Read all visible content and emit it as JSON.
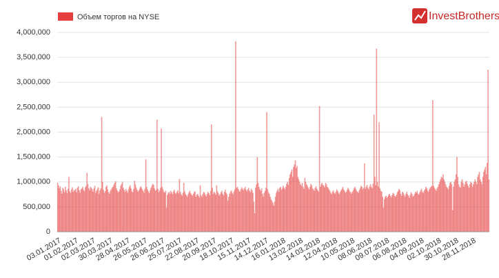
{
  "chart_data": {
    "type": "bar",
    "legend": "Объем торгов на NYSE",
    "logo": "InvestBrothers",
    "color": "#e53e3e",
    "grid": true,
    "ylim": [
      0,
      4000000
    ],
    "yticks": [
      0,
      {
        "value": 500000,
        "label": "500,000"
      },
      {
        "value": 1000000,
        "label": "1,000,000"
      },
      {
        "value": 1500000,
        "label": "1,500,000"
      },
      {
        "value": 2000000,
        "label": "2,000,000"
      },
      {
        "value": 2500000,
        "label": "2,500,000"
      },
      {
        "value": 3000000,
        "label": "3,000,000"
      },
      {
        "value": 3500000,
        "label": "3,500,000"
      },
      {
        "value": 4000000,
        "label": "4,000,000"
      }
    ],
    "categories": [
      "03.01.2017",
      null,
      null,
      null,
      null,
      null,
      null,
      null,
      null,
      null,
      null,
      null,
      null,
      null,
      null,
      null,
      null,
      null,
      null,
      null,
      "01.02.2017",
      null,
      null,
      null,
      null,
      null,
      null,
      null,
      null,
      null,
      null,
      null,
      null,
      null,
      null,
      null,
      null,
      null,
      null,
      null,
      "02.03.2017",
      null,
      null,
      null,
      null,
      null,
      null,
      null,
      null,
      null,
      null,
      null,
      null,
      null,
      null,
      null,
      null,
      null,
      null,
      null,
      "30.03.2017",
      null,
      null,
      null,
      null,
      null,
      null,
      null,
      null,
      null,
      null,
      null,
      null,
      null,
      null,
      null,
      null,
      null,
      null,
      null,
      "28.04.2017",
      null,
      null,
      null,
      null,
      null,
      null,
      null,
      null,
      null,
      null,
      null,
      null,
      null,
      null,
      null,
      null,
      null,
      null,
      null,
      "26.05.2017",
      null,
      null,
      null,
      null,
      null,
      null,
      null,
      null,
      null,
      null,
      null,
      null,
      null,
      null,
      null,
      null,
      null,
      null,
      null,
      "26.06.2017",
      null,
      null,
      null,
      null,
      null,
      null,
      null,
      null,
      null,
      null,
      null,
      null,
      null,
      null,
      null,
      null,
      null,
      null,
      null,
      "25.07.2017",
      null,
      null,
      null,
      null,
      null,
      null,
      null,
      null,
      null,
      null,
      null,
      null,
      null,
      null,
      null,
      null,
      null,
      null,
      null,
      "22.08.2017",
      null,
      null,
      null,
      null,
      null,
      null,
      null,
      null,
      null,
      null,
      null,
      null,
      null,
      null,
      null,
      null,
      null,
      null,
      null,
      "20.09.2017",
      null,
      null,
      null,
      null,
      null,
      null,
      null,
      null,
      null,
      null,
      null,
      null,
      null,
      null,
      null,
      null,
      null,
      null,
      null,
      "18.10.2017",
      null,
      null,
      null,
      null,
      null,
      null,
      null,
      null,
      null,
      null,
      null,
      null,
      null,
      null,
      null,
      null,
      null,
      null,
      null,
      "15.11.2017",
      null,
      null,
      null,
      null,
      null,
      null,
      null,
      null,
      null,
      null,
      null,
      null,
      null,
      null,
      null,
      null,
      null,
      null,
      null,
      "14.12.2017",
      null,
      null,
      null,
      null,
      null,
      null,
      null,
      null,
      null,
      null,
      null,
      null,
      null,
      null,
      null,
      null,
      null,
      null,
      null,
      "16.01.2018",
      null,
      null,
      null,
      null,
      null,
      null,
      null,
      null,
      null,
      null,
      null,
      null,
      null,
      null,
      null,
      null,
      null,
      null,
      null,
      "13.02.2018",
      null,
      null,
      null,
      null,
      null,
      null,
      null,
      null,
      null,
      null,
      null,
      null,
      null,
      null,
      null,
      null,
      null,
      null,
      null,
      "14.03.2018",
      null,
      null,
      null,
      null,
      null,
      null,
      null,
      null,
      null,
      null,
      null,
      null,
      null,
      null,
      null,
      null,
      null,
      null,
      null,
      "12.04.2018",
      null,
      null,
      null,
      null,
      null,
      null,
      null,
      null,
      null,
      null,
      null,
      null,
      null,
      null,
      null,
      null,
      null,
      null,
      null,
      "10.05.2018",
      null,
      null,
      null,
      null,
      null,
      null,
      null,
      null,
      null,
      null,
      null,
      null,
      null,
      null,
      null,
      null,
      null,
      null,
      null,
      "08.06.2018",
      null,
      null,
      null,
      null,
      null,
      null,
      null,
      null,
      null,
      null,
      null,
      null,
      null,
      null,
      null,
      null,
      null,
      null,
      null,
      "09.07.2018",
      null,
      null,
      null,
      null,
      null,
      null,
      null,
      null,
      null,
      null,
      null,
      null,
      null,
      null,
      null,
      null,
      null,
      null,
      null,
      "06.08.2018",
      null,
      null,
      null,
      null,
      null,
      null,
      null,
      null,
      null,
      null,
      null,
      null,
      null,
      null,
      null,
      null,
      null,
      null,
      null,
      "04.09.2018",
      null,
      null,
      null,
      null,
      null,
      null,
      null,
      null,
      null,
      null,
      null,
      null,
      null,
      null,
      null,
      null,
      null,
      null,
      null,
      "02.10.2018",
      null,
      null,
      null,
      null,
      null,
      null,
      null,
      null,
      null,
      null,
      null,
      null,
      null,
      null,
      null,
      null,
      null,
      null,
      null,
      "30.10.2018",
      null,
      null,
      null,
      null,
      null,
      null,
      null,
      null,
      null,
      null,
      null,
      null,
      null,
      null,
      null,
      null,
      null,
      null,
      null,
      "28.11.2018",
      null,
      null,
      null,
      null,
      null,
      null,
      null,
      null,
      null,
      null,
      null,
      null,
      null,
      null,
      null,
      null,
      null,
      null,
      null
    ],
    "values": [
      980000,
      930000,
      870000,
      910000,
      820000,
      760000,
      880000,
      850000,
      790000,
      900000,
      830000,
      770000,
      860000,
      1100000,
      810000,
      780000,
      850000,
      890000,
      800000,
      840000,
      820000,
      860000,
      790000,
      880000,
      910000,
      830000,
      780000,
      850000,
      870000,
      900000,
      840000,
      810000,
      890000,
      920000,
      1180000,
      960000,
      870000,
      830000,
      900000,
      880000,
      850000,
      800000,
      870000,
      920000,
      780000,
      820000,
      860000,
      890000,
      760000,
      830000,
      870000,
      2300000,
      1000000,
      840000,
      780000,
      810000,
      900000,
      930000,
      850000,
      790000,
      760000,
      820000,
      850000,
      880000,
      900000,
      940000,
      980000,
      1010000,
      870000,
      830000,
      790000,
      810000,
      850000,
      920000,
      960000,
      1000000,
      880000,
      840000,
      800000,
      860000,
      820000,
      780000,
      850000,
      900000,
      930000,
      870000,
      810000,
      790000,
      860000,
      1020000,
      950000,
      880000,
      840000,
      800000,
      830000,
      870000,
      910000,
      890000,
      850000,
      820000,
      780000,
      860000,
      1450000,
      900000,
      850000,
      810000,
      770000,
      830000,
      880000,
      920000,
      960000,
      940000,
      870000,
      820000,
      840000,
      2250000,
      860000,
      790000,
      830000,
      880000,
      2070000,
      900000,
      850000,
      800000,
      780000,
      820000,
      480000,
      740000,
      780000,
      800000,
      760000,
      820000,
      790000,
      750000,
      810000,
      840000,
      780000,
      760000,
      800000,
      830000,
      770000,
      1060000,
      800000,
      750000,
      720000,
      780000,
      980000,
      810000,
      760000,
      730000,
      700000,
      750000,
      790000,
      820000,
      770000,
      740000,
      720000,
      760000,
      790000,
      810000,
      700000,
      740000,
      760000,
      720000,
      690000,
      930000,
      730000,
      700000,
      760000,
      800000,
      780000,
      740000,
      710000,
      760000,
      800000,
      770000,
      730000,
      820000,
      2150000,
      880000,
      760000,
      800000,
      780000,
      740000,
      930000,
      810000,
      770000,
      720000,
      750000,
      790000,
      820000,
      760000,
      730000,
      800000,
      840000,
      780000,
      750000,
      620000,
      700000,
      760000,
      800000,
      830000,
      780000,
      750000,
      810000,
      850000,
      3820000,
      880000,
      900000,
      860000,
      820000,
      800000,
      850000,
      890000,
      860000,
      830000,
      870000,
      900000,
      840000,
      810000,
      850000,
      880000,
      820000,
      790000,
      860000,
      830000,
      780000,
      600000,
      370000,
      880000,
      950000,
      1500000,
      980000,
      900000,
      850000,
      820000,
      870000,
      760000,
      700000,
      780000,
      820000,
      880000,
      2400000,
      850000,
      790000,
      760000,
      700000,
      650000,
      620000,
      580000,
      520000,
      600000,
      700000,
      780000,
      820000,
      860000,
      800000,
      880000,
      900000,
      840000,
      870000,
      920000,
      880000,
      850000,
      900000,
      960000,
      1000000,
      940000,
      1080000,
      1150000,
      1200000,
      1250000,
      1100000,
      1300000,
      1350000,
      1430000,
      1280000,
      1320000,
      1100000,
      1050000,
      1000000,
      950000,
      920000,
      980000,
      900000,
      860000,
      1080000,
      1000000,
      950000,
      920000,
      880000,
      850000,
      900000,
      960000,
      930000,
      870000,
      850000,
      820000,
      880000,
      910000,
      860000,
      830000,
      800000,
      2520000,
      900000,
      950000,
      980000,
      940000,
      920000,
      890000,
      980000,
      950000,
      900000,
      880000,
      850000,
      820000,
      780000,
      750000,
      800000,
      830000,
      780000,
      760000,
      800000,
      850000,
      820000,
      780000,
      750000,
      800000,
      830000,
      860000,
      900000,
      850000,
      820000,
      780000,
      800000,
      840000,
      880000,
      850000,
      810000,
      790000,
      760000,
      800000,
      830000,
      870000,
      900000,
      860000,
      820000,
      800000,
      780000,
      830000,
      870000,
      920000,
      900000,
      850000,
      880000,
      1370000,
      860000,
      900000,
      940000,
      880000,
      850000,
      910000,
      950000,
      900000,
      870000,
      960000,
      2350000,
      1100000,
      930000,
      3670000,
      1000000,
      900000,
      2200000,
      870000,
      820000,
      800000,
      700000,
      480000,
      650000,
      700000,
      720000,
      680000,
      700000,
      740000,
      760000,
      720000,
      690000,
      730000,
      780000,
      760000,
      720000,
      700000,
      740000,
      790000,
      820000,
      860000,
      830000,
      760000,
      720000,
      800000,
      780000,
      740000,
      700000,
      760000,
      800000,
      750000,
      720000,
      680000,
      740000,
      790000,
      760000,
      700000,
      720000,
      760000,
      800000,
      780000,
      820000,
      760000,
      740000,
      790000,
      830000,
      860000,
      800000,
      780000,
      820000,
      850000,
      900000,
      870000,
      830000,
      800000,
      850000,
      880000,
      900000,
      920000,
      2640000,
      920000,
      880000,
      850000,
      820000,
      870000,
      900000,
      950000,
      1000000,
      1050000,
      1100000,
      1080000,
      1150000,
      1050000,
      1000000,
      950000,
      900000,
      880000,
      850000,
      920000,
      980000,
      1000000,
      950000,
      430000,
      900000,
      1000000,
      1050000,
      1150000,
      1500000,
      1100000,
      950000,
      900000,
      880000,
      1000000,
      1050000,
      980000,
      900000,
      950000,
      1000000,
      1020000,
      960000,
      920000,
      880000,
      950000,
      1000000,
      980000,
      900000,
      950000,
      1000000,
      1050000,
      1000000,
      950000,
      1100000,
      1150000,
      1200000,
      1050000,
      1000000,
      950000,
      1100000,
      1200000,
      1250000,
      1300000,
      1150000,
      1380000,
      3250000,
      1050000
    ]
  }
}
